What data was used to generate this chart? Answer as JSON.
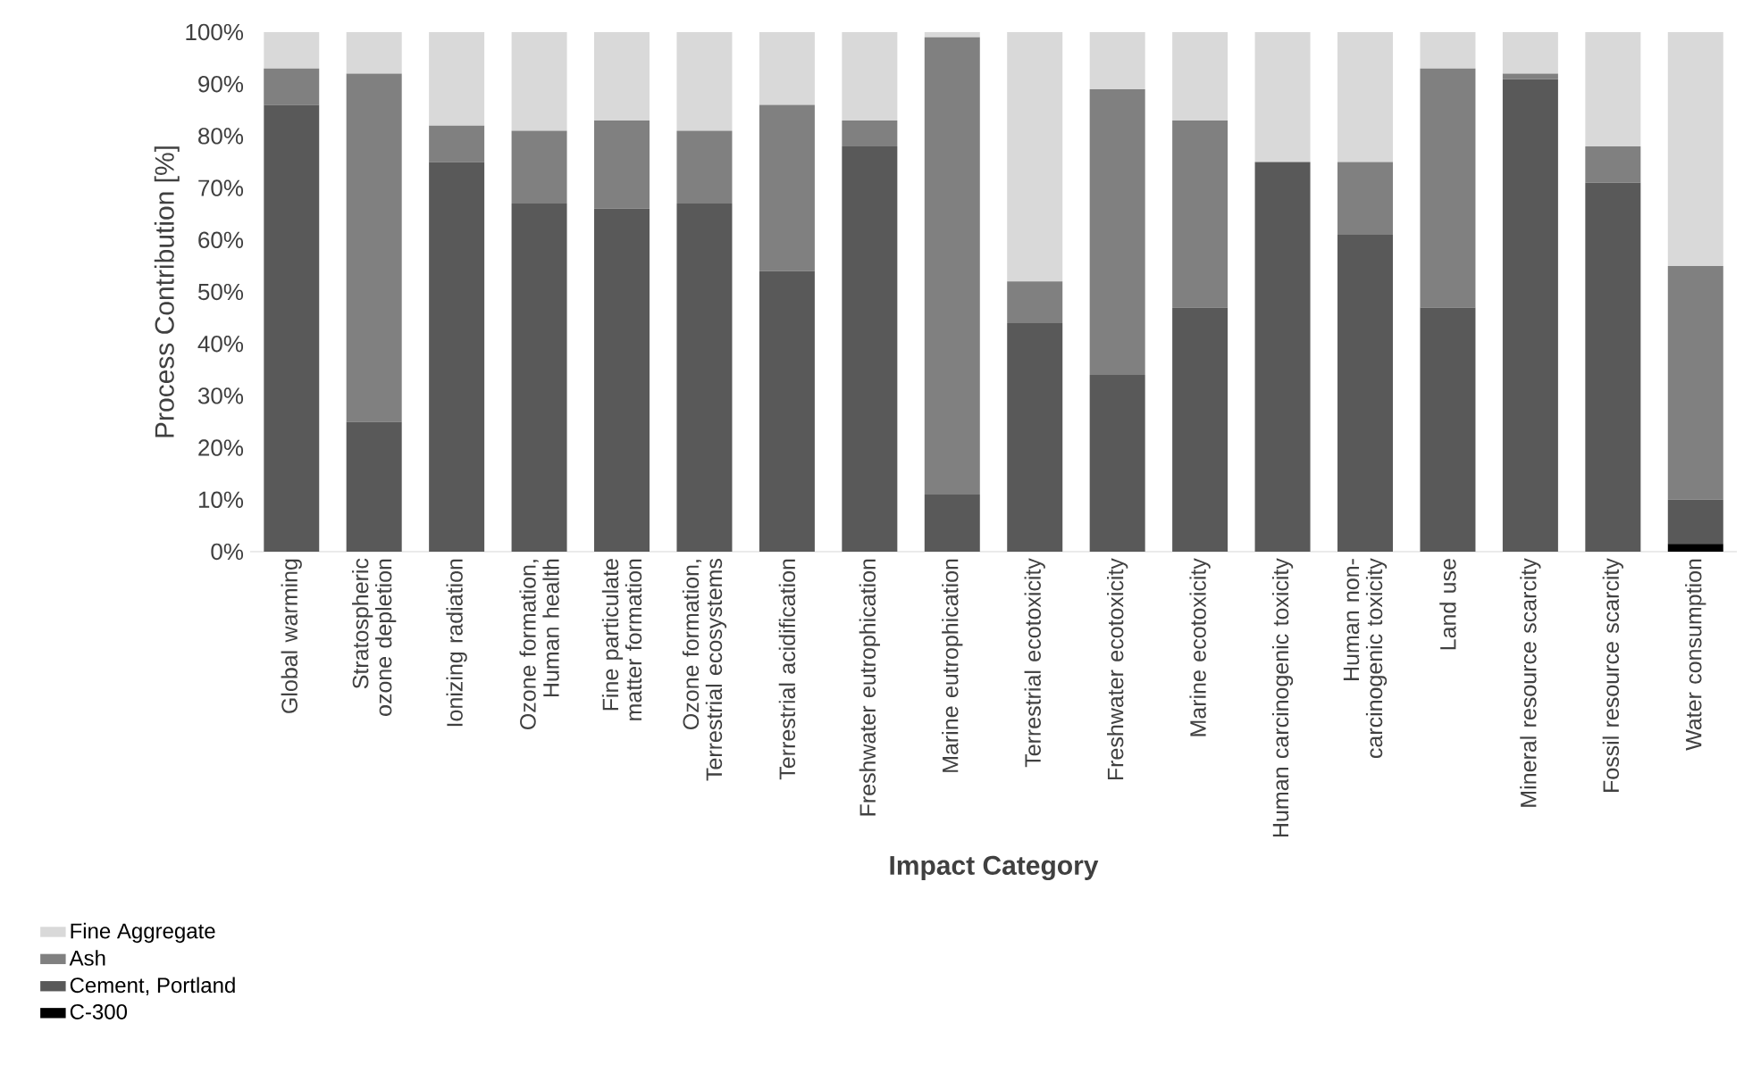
{
  "chart_data": {
    "type": "bar",
    "stacked": true,
    "ylabel": "Process Contribution  [%]",
    "xlabel": "Impact Category",
    "categories": [
      "Global warming",
      "Stratospheric ozone depletion",
      "Ionizing radiation",
      "Ozone formation, Human health",
      "Fine particulate matter formation",
      "Ozone formation, Terrestrial ecosystems",
      "Terrestrial acidification",
      "Freshwater eutrophication",
      "Marine eutrophication",
      "Terrestrial ecotoxicity",
      "Freshwater ecotoxicity",
      "Marine ecotoxicity",
      "Human carcinogenic toxicity",
      "Human non-carcinogenic toxicity",
      "Land use",
      "Mineral resource scarcity",
      "Fossil resource scarcity",
      "Water consumption"
    ],
    "series": [
      {
        "name": "C-300",
        "color": "#000000",
        "values": [
          0,
          0,
          0,
          0,
          0,
          0,
          0,
          0,
          0,
          0,
          0,
          0,
          0,
          0,
          0,
          0,
          0,
          1.5
        ]
      },
      {
        "name": "Cement, Portland",
        "color": "#595959",
        "values": [
          86,
          25,
          75,
          67,
          66,
          67,
          54,
          78,
          11,
          44,
          34,
          47,
          75,
          61,
          47,
          91,
          71,
          8.5
        ]
      },
      {
        "name": "Ash",
        "color": "#808080",
        "values": [
          7,
          67,
          7,
          14,
          17,
          14,
          32,
          5,
          88,
          8,
          55,
          36,
          0,
          14,
          46,
          1,
          7,
          45
        ]
      },
      {
        "name": "Fine Aggregate",
        "color": "#d9d9d9",
        "values": [
          7,
          8,
          18,
          19,
          17,
          19,
          14,
          17,
          1,
          48,
          11,
          17,
          25,
          25,
          7,
          8,
          22,
          45
        ]
      }
    ],
    "ylim": [
      0,
      100
    ],
    "yticks": [
      {
        "value": 0,
        "label": "0%"
      },
      {
        "value": 10,
        "label": "10%"
      },
      {
        "value": 20,
        "label": "20%"
      },
      {
        "value": 30,
        "label": "30%"
      },
      {
        "value": 40,
        "label": "40%"
      },
      {
        "value": 50,
        "label": "50%"
      },
      {
        "value": 60,
        "label": "60%"
      },
      {
        "value": 70,
        "label": "70%"
      },
      {
        "value": 80,
        "label": "80%"
      },
      {
        "value": 90,
        "label": "90%"
      },
      {
        "value": 100,
        "label": "100%"
      }
    ],
    "legend": "bottom left"
  }
}
